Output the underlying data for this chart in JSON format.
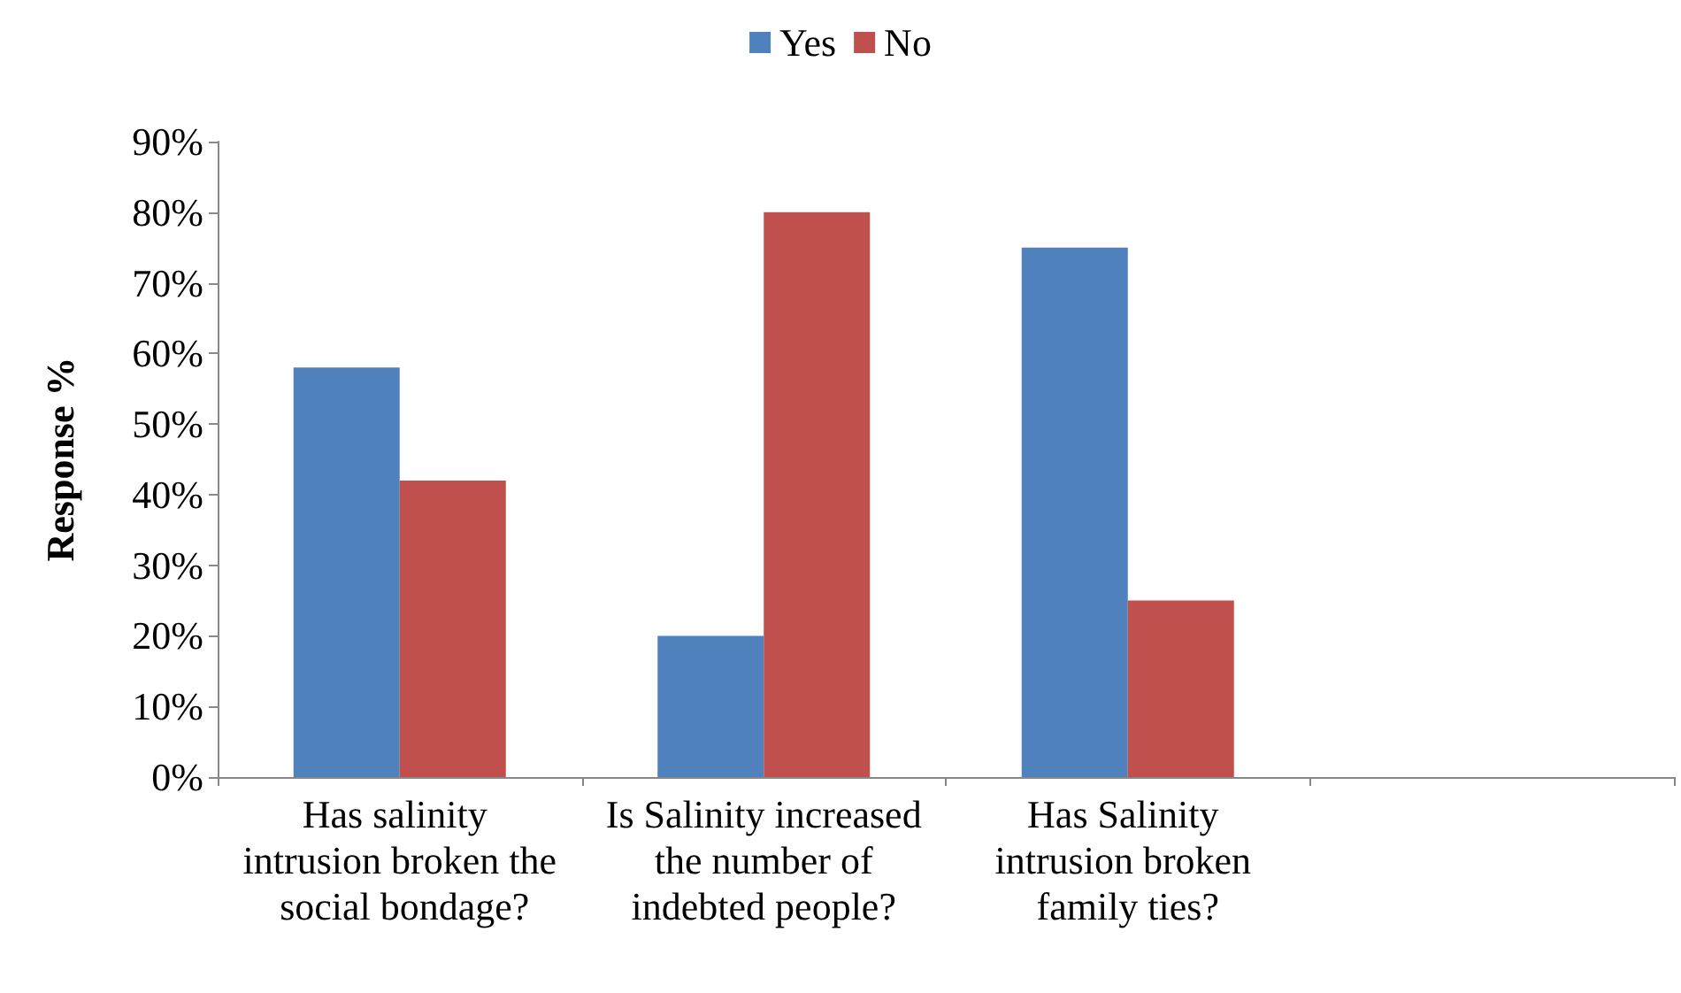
{
  "chart_data": {
    "type": "bar",
    "ylabel": "Response %",
    "categories": [
      "Has salinity intrusion broken the social bondage?",
      "Is Salinity increased the number of indebted people?",
      "Has Salinity intrusion broken family ties?",
      null
    ],
    "series": [
      {
        "name": "Yes",
        "color": "#4f81bd",
        "values": [
          58,
          20,
          75,
          null
        ]
      },
      {
        "name": "No",
        "color": "#c0504d",
        "values": [
          42,
          80,
          25,
          null
        ]
      }
    ],
    "ylim": [
      0,
      90
    ],
    "yticks": [
      {
        "value": 0,
        "label": "0%"
      },
      {
        "value": 10,
        "label": "10%"
      },
      {
        "value": 20,
        "label": "20%"
      },
      {
        "value": 30,
        "label": "30%"
      },
      {
        "value": 40,
        "label": "40%"
      },
      {
        "value": 50,
        "label": "50%"
      },
      {
        "value": 60,
        "label": "60%"
      },
      {
        "value": 70,
        "label": "70%"
      },
      {
        "value": 80,
        "label": "80%"
      },
      {
        "value": 90,
        "label": "90%"
      }
    ],
    "grid": false,
    "legend": "top"
  }
}
